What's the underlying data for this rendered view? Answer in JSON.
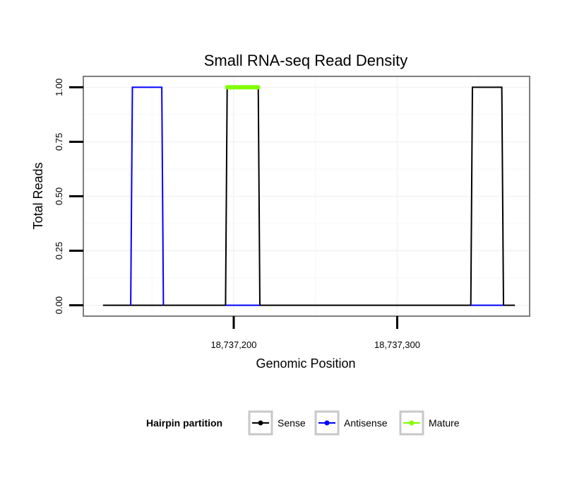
{
  "chart_data": {
    "type": "line",
    "title": "Small RNA-seq Read Density",
    "xlabel": "Genomic Position",
    "ylabel": "Total Reads",
    "xlim": [
      18737108,
      18737381
    ],
    "ylim": [
      -0.05,
      1.05
    ],
    "x_ticks": [
      {
        "value": 18737200,
        "label": "18,737,200"
      },
      {
        "value": 18737300,
        "label": "18,737,300"
      }
    ],
    "y_ticks": [
      {
        "value": 0.0,
        "label": "0.00"
      },
      {
        "value": 0.25,
        "label": "0.25"
      },
      {
        "value": 0.5,
        "label": "0.50"
      },
      {
        "value": 0.75,
        "label": "0.75"
      },
      {
        "value": 1.0,
        "label": "1.00"
      }
    ],
    "grid": true,
    "legend": {
      "title": "Hairpin partition",
      "position": "bottom",
      "entries": [
        {
          "name": "Sense",
          "color": "#000000"
        },
        {
          "name": "Antisense",
          "color": "#0000ff"
        },
        {
          "name": "Mature",
          "color": "#7fff00"
        }
      ]
    },
    "series": [
      {
        "name": "Sense",
        "color": "#000000",
        "stroke": 2,
        "x": [
          18737120,
          18737195,
          18737196,
          18737215,
          18737216,
          18737345,
          18737346,
          18737364,
          18737365,
          18737372
        ],
        "y": [
          0,
          0,
          1,
          1,
          0,
          0,
          1,
          1,
          0,
          0
        ]
      },
      {
        "name": "Antisense",
        "color": "#0000ff",
        "stroke": 2,
        "x": [
          18737137,
          18737138,
          18737156,
          18737157,
          18737195,
          18737216,
          18737345,
          18737365
        ],
        "y": [
          0,
          1,
          1,
          0,
          null,
          null,
          null,
          null
        ],
        "segments": [
          {
            "x": [
              18737137,
              18737138,
              18737156,
              18737157
            ],
            "y": [
              0,
              1,
              1,
              0
            ]
          },
          {
            "x": [
              18737195,
              18737216
            ],
            "y": [
              0,
              0
            ]
          },
          {
            "x": [
              18737345,
              18737365
            ],
            "y": [
              0,
              0
            ]
          }
        ]
      },
      {
        "name": "Mature",
        "color": "#7fff00",
        "stroke": 6,
        "segments": [
          {
            "x": [
              18737196,
              18737215
            ],
            "y": [
              1,
              1
            ]
          }
        ]
      }
    ]
  }
}
